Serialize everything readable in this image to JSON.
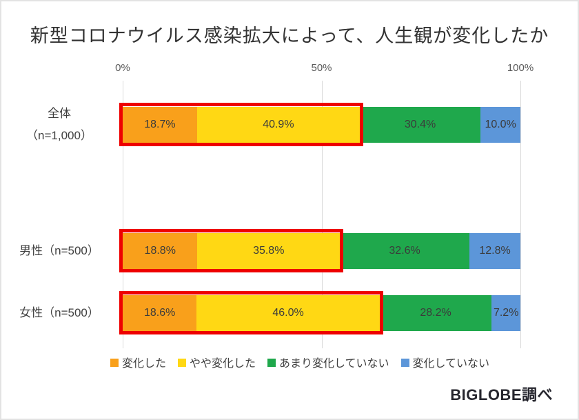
{
  "title": "新型コロナウイルス感染拡大によって、人生観が変化したか",
  "source": "BIGLOBE調べ",
  "axis_ticks": [
    "0%",
    "50%",
    "100%"
  ],
  "highlight_color": "#ee0000",
  "legend": [
    {
      "label": "変化した",
      "color": "#f9a01b"
    },
    {
      "label": "やや変化した",
      "color": "#ffd814"
    },
    {
      "label": "あまり変化していない",
      "color": "#1fa84c"
    },
    {
      "label": "変化していない",
      "color": "#5c96d9"
    }
  ],
  "chart_data": {
    "type": "bar",
    "orientation": "horizontal",
    "stacked": true,
    "title": "新型コロナウイルス感染拡大によって、人生観が変化したか",
    "categories": [
      "全体（n=1,000）",
      "男性（n=500）",
      "女性（n=500）"
    ],
    "category_label_lines": [
      [
        "全体",
        "（n=1,000）"
      ],
      [
        "男性（n=500）"
      ],
      [
        "女性（n=500）"
      ]
    ],
    "series": [
      {
        "name": "変化した",
        "color": "#f9a01b",
        "values": [
          18.7,
          18.8,
          18.6
        ]
      },
      {
        "name": "やや変化した",
        "color": "#ffd814",
        "values": [
          40.9,
          35.8,
          46.0
        ]
      },
      {
        "name": "あまり変化していない",
        "color": "#1fa84c",
        "values": [
          30.4,
          32.6,
          28.2
        ]
      },
      {
        "name": "変化していない",
        "color": "#5c96d9",
        "values": [
          10.0,
          12.8,
          7.2
        ]
      }
    ],
    "value_label_format": "0.0%",
    "xlim": [
      0,
      100
    ],
    "x_ticks": [
      "0%",
      "50%",
      "100%"
    ],
    "legend_position": "bottom",
    "annotations": "変化した と やや変化した の合計セグメントが赤枠で強調されている"
  }
}
